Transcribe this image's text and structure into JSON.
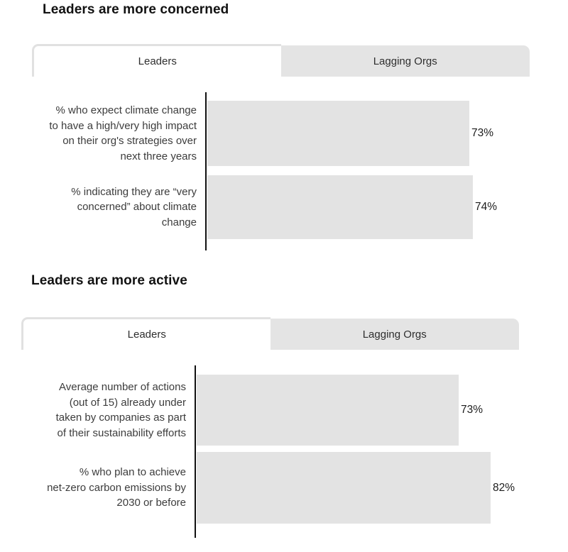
{
  "colors": {
    "background": "#ffffff",
    "bar_fill": "#e3e3e3",
    "inactive_tab_bg": "#e4e4e4",
    "active_tab_border": "#e1e1e1",
    "axis_line": "#111111",
    "title_text": "#121212",
    "label_text": "#3c3c3c"
  },
  "sections": [
    {
      "title": "Leaders are more concerned",
      "tabs": [
        {
          "label": "Leaders",
          "active": true
        },
        {
          "label": "Lagging Orgs",
          "active": false
        }
      ]
    },
    {
      "title": "Leaders are more active",
      "tabs": [
        {
          "label": "Leaders",
          "active": true
        },
        {
          "label": "Lagging Orgs",
          "active": false
        }
      ]
    }
  ],
  "chart_data": [
    {
      "type": "bar",
      "orientation": "horizontal",
      "title": "Leaders are more concerned",
      "selected_tab": "Leaders",
      "categories": [
        "% who expect climate change\nto have a high/very high impact\non their org's strategies over\nnext three years",
        "% indicating they are “very\nconcerned” about climate\nchange"
      ],
      "values": [
        73,
        74
      ],
      "value_labels": [
        "73%",
        "74%"
      ],
      "xlim": [
        0,
        100
      ],
      "grid": false,
      "legend": false,
      "bar_color": "#e3e3e3"
    },
    {
      "type": "bar",
      "orientation": "horizontal",
      "title": "Leaders are more active",
      "selected_tab": "Leaders",
      "categories": [
        "Average number of actions\n(out of 15) already under\ntaken by companies as part\nof their sustainability efforts",
        "% who plan to achieve\nnet-zero carbon emissions by\n2030 or before"
      ],
      "values": [
        73,
        82
      ],
      "value_labels": [
        "73%",
        "82%"
      ],
      "xlim": [
        0,
        100
      ],
      "grid": false,
      "legend": false,
      "bar_color": "#e3e3e3"
    }
  ]
}
